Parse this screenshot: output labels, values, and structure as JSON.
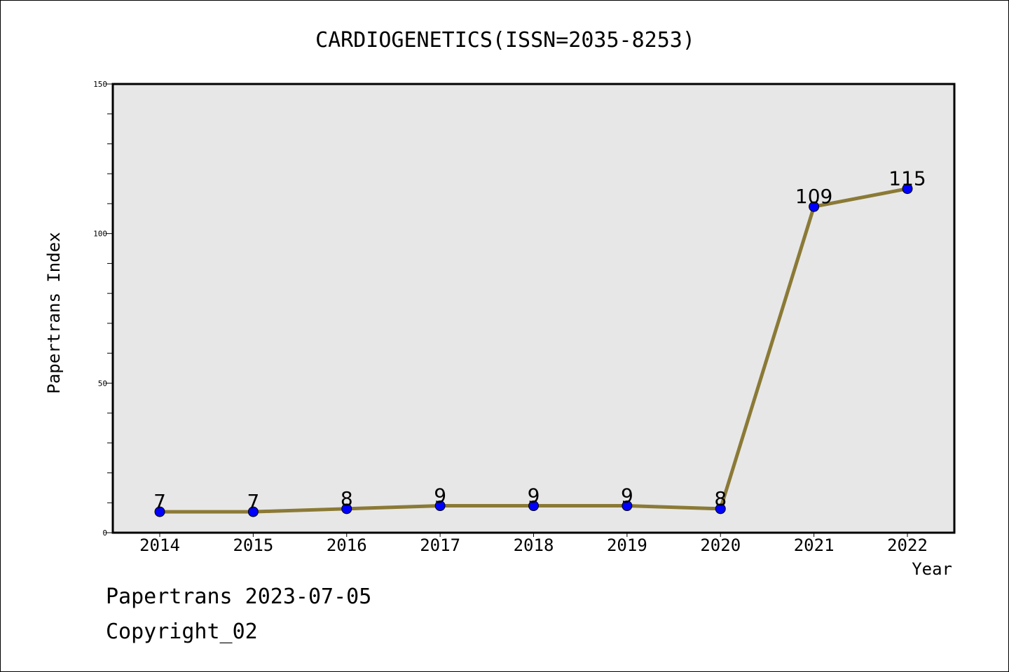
{
  "chart_data": {
    "type": "line",
    "title": "CARDIOGENETICS(ISSN=2035-8253)",
    "xlabel": "Year",
    "ylabel": "Papertrans Index",
    "categories": [
      "2014",
      "2015",
      "2016",
      "2017",
      "2018",
      "2019",
      "2020",
      "2021",
      "2022"
    ],
    "series": [
      {
        "values": [
          7,
          7,
          8,
          9,
          9,
          9,
          8,
          109,
          115
        ]
      }
    ],
    "data_labels": [
      "7",
      "7",
      "8",
      "9",
      "9",
      "9",
      "8",
      "109",
      "115"
    ],
    "ylim": [
      0,
      150
    ],
    "y_ticks": [
      0,
      50,
      100,
      150
    ],
    "y_tick_labels": [
      "0",
      "50",
      "100",
      "150"
    ],
    "grid": false,
    "legend": "none",
    "colors": {
      "line": "#8b7a36",
      "marker": "#0000ff",
      "plot_background": "#e7e7e7"
    }
  },
  "footer": {
    "date_text": "Papertrans 2023-07-05",
    "copyright_text": "Copyright_02"
  }
}
